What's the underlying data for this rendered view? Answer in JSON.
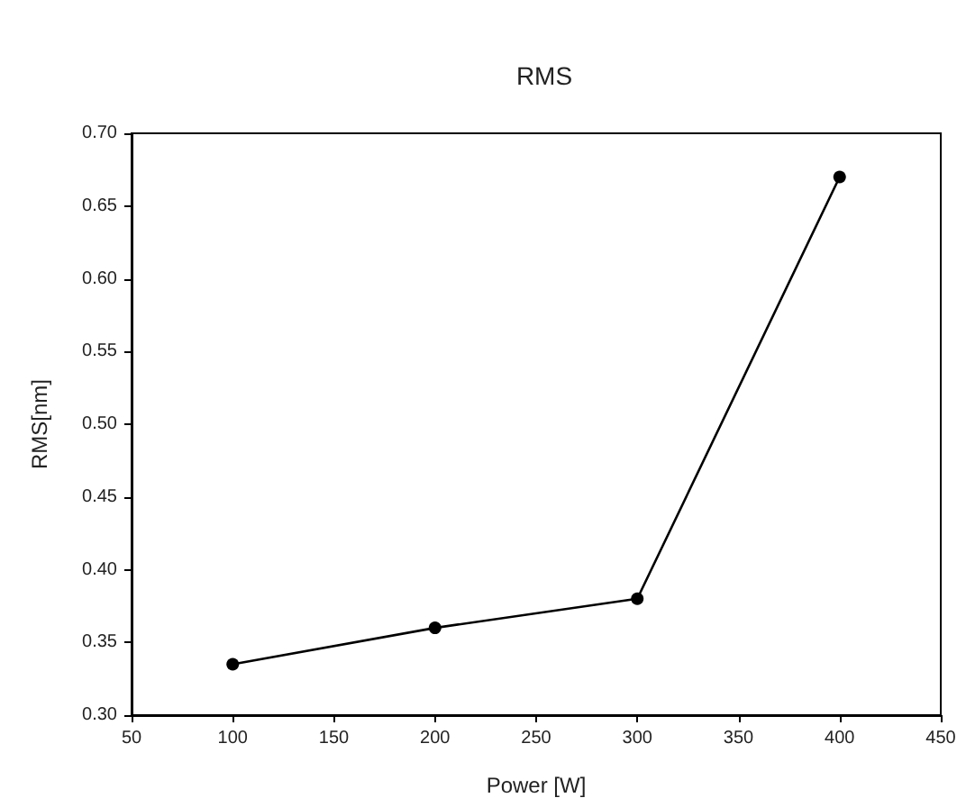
{
  "chart_data": {
    "type": "line",
    "title": "RMS",
    "xlabel": "Power [W]",
    "ylabel": "RMS[nm]",
    "x": [
      100,
      200,
      300,
      400
    ],
    "series": [
      {
        "color": "#000000",
        "values": [
          0.335,
          0.36,
          0.38,
          0.67
        ]
      }
    ],
    "xlim": [
      50,
      450
    ],
    "xticks": [
      50,
      100,
      150,
      200,
      250,
      300,
      350,
      400,
      450
    ],
    "ylim": [
      0.3,
      0.7
    ],
    "yticks": [
      {
        "value": 0.3,
        "label": "0.30"
      },
      0.35,
      {
        "value": 0.4,
        "label": "0.40"
      },
      0.45,
      {
        "value": 0.5,
        "label": "0.50"
      },
      0.55,
      {
        "value": 0.6,
        "label": "0.60"
      },
      0.65,
      {
        "value": 0.7,
        "label": "0.70"
      }
    ],
    "grid": false,
    "marker": "circle",
    "line_style": "solid"
  }
}
